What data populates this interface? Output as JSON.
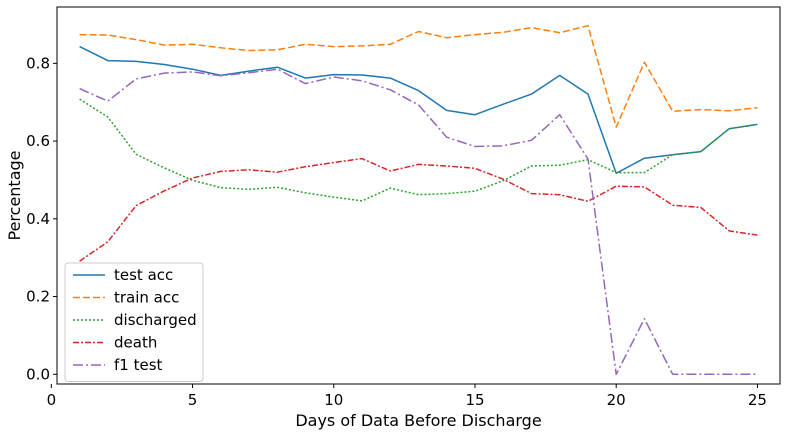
{
  "chart_data": {
    "type": "line",
    "xlabel": "Days of Data Before Discharge",
    "ylabel": "Percentage",
    "xlim": [
      0.2,
      25.8
    ],
    "ylim": [
      -0.025,
      0.945
    ],
    "xticks": [
      0,
      5,
      10,
      15,
      20,
      25
    ],
    "yticks": [
      0.0,
      0.2,
      0.4,
      0.6,
      0.8
    ],
    "xtick_labels": [
      "0",
      "5",
      "10",
      "15",
      "20",
      "25"
    ],
    "ytick_labels": [
      "0.0",
      "0.2",
      "0.4",
      "0.6",
      "0.8"
    ],
    "grid": false,
    "legend_position": "lower-left",
    "x": [
      1,
      2,
      3,
      4,
      5,
      6,
      7,
      8,
      9,
      10,
      11,
      12,
      13,
      14,
      15,
      16,
      17,
      18,
      19,
      20,
      21,
      22,
      23,
      24,
      25
    ],
    "series": [
      {
        "name": "test acc",
        "color": "#1f77b4",
        "dash": "solid",
        "values": [
          0.843,
          0.807,
          0.805,
          0.797,
          0.785,
          0.769,
          0.78,
          0.79,
          0.762,
          0.771,
          0.77,
          0.762,
          0.73,
          0.679,
          0.668,
          0.695,
          0.721,
          0.769,
          0.721,
          0.517,
          0.556,
          0.565,
          0.573,
          0.632,
          0.643
        ]
      },
      {
        "name": "train acc",
        "color": "#ff7f0e",
        "dash": "dashed",
        "values": [
          0.874,
          0.873,
          0.861,
          0.847,
          0.849,
          0.84,
          0.833,
          0.835,
          0.849,
          0.843,
          0.845,
          0.849,
          0.882,
          0.866,
          0.874,
          0.88,
          0.892,
          0.879,
          0.897,
          0.636,
          0.803,
          0.677,
          0.681,
          0.678,
          0.686
        ]
      },
      {
        "name": "discharged",
        "color": "#2ca02c",
        "dash": "dotted",
        "values": [
          0.708,
          0.662,
          0.566,
          0.531,
          0.499,
          0.48,
          0.476,
          0.481,
          0.467,
          0.456,
          0.446,
          0.479,
          0.462,
          0.465,
          0.471,
          0.498,
          0.536,
          0.538,
          0.552,
          0.519,
          0.519,
          0.565,
          0.573,
          0.632,
          0.643
        ]
      },
      {
        "name": "death",
        "color": "#d62728",
        "dash": "dashdot",
        "values": [
          0.291,
          0.341,
          0.434,
          0.472,
          0.505,
          0.522,
          0.526,
          0.52,
          0.534,
          0.545,
          0.555,
          0.523,
          0.54,
          0.536,
          0.53,
          0.502,
          0.465,
          0.462,
          0.445,
          0.484,
          0.482,
          0.435,
          0.429,
          0.369,
          0.358
        ]
      },
      {
        "name": "f1 test",
        "color": "#9467bd",
        "dash": "longdashdot",
        "values": [
          0.735,
          0.703,
          0.76,
          0.775,
          0.778,
          0.768,
          0.776,
          0.785,
          0.748,
          0.765,
          0.755,
          0.732,
          0.693,
          0.61,
          0.586,
          0.588,
          0.602,
          0.668,
          0.554,
          0.0,
          0.143,
          0.0,
          0.0,
          0.0,
          0.0
        ]
      }
    ]
  }
}
